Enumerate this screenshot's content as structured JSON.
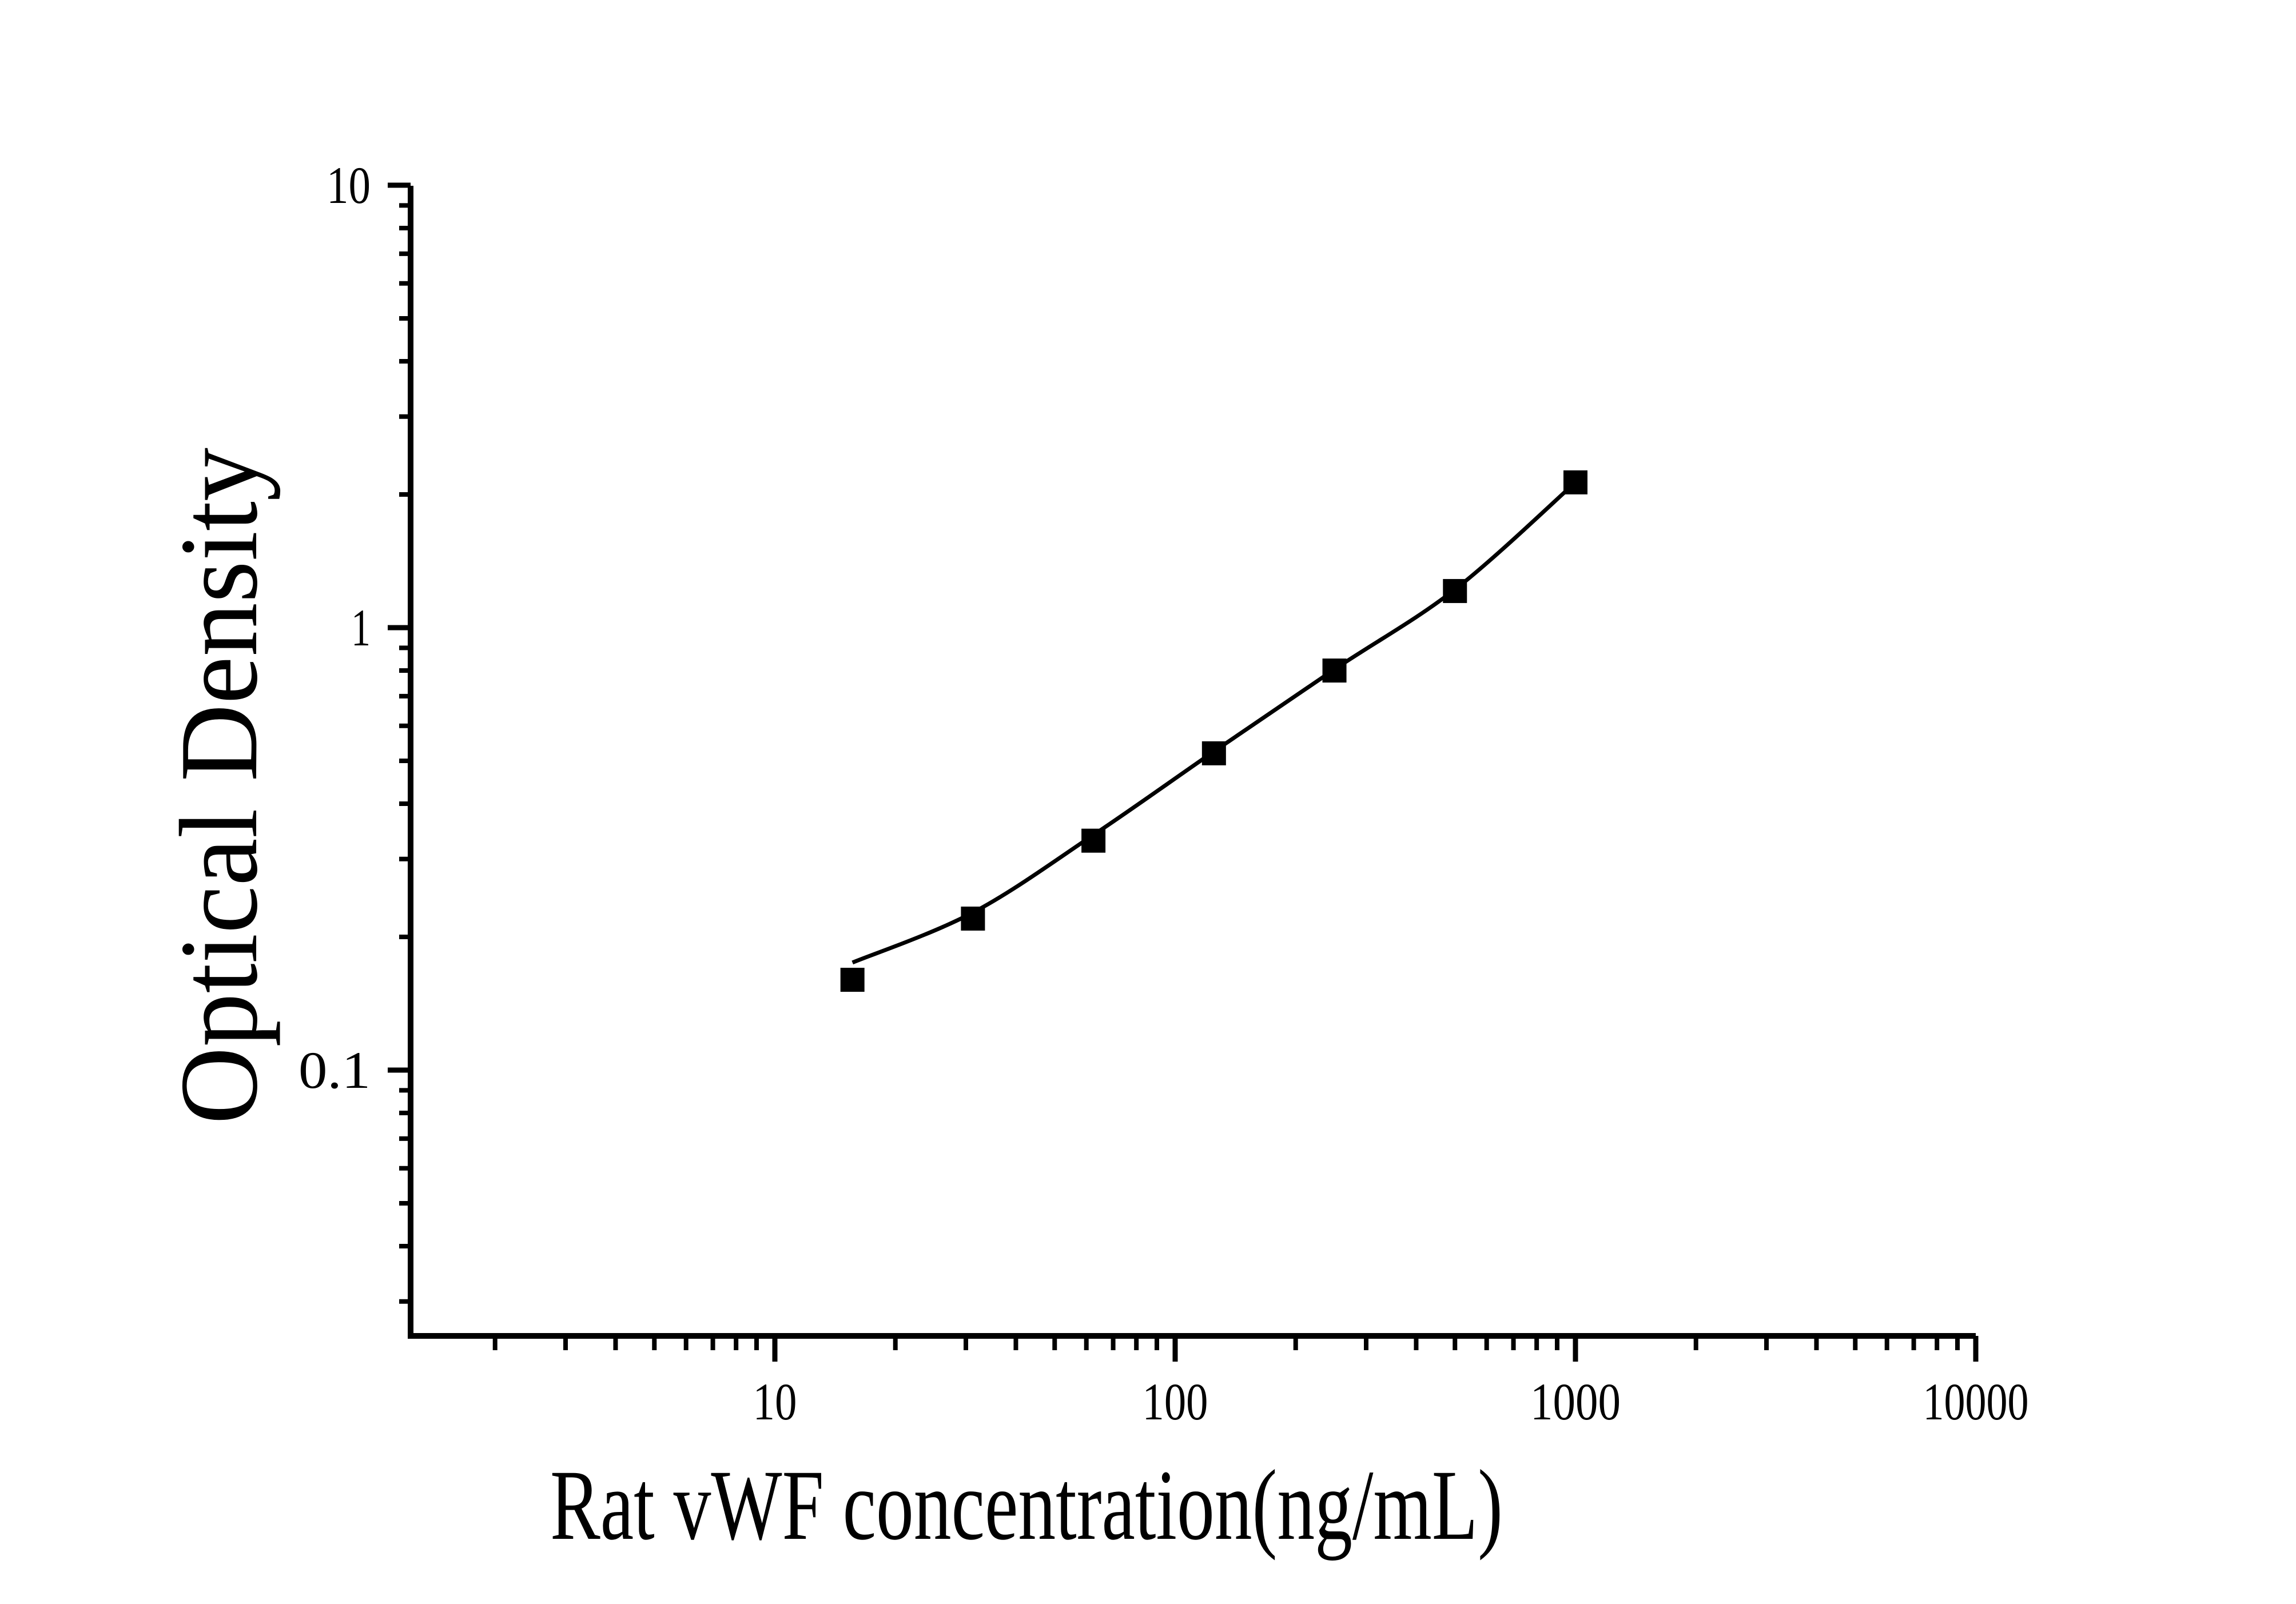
{
  "figure": {
    "background_color": "#ffffff",
    "ink_color": "#000000"
  },
  "chart_data": {
    "type": "scatter",
    "title": "",
    "xlabel": "Rat vWF concentration(ng/mL)",
    "ylabel": "Optical Density",
    "x_scale": "log",
    "y_scale": "log",
    "x_range": [
      1.24,
      10000
    ],
    "y_range": [
      0.025,
      10
    ],
    "grid": "off",
    "legend": "none",
    "marker": "filled-square",
    "marker_color": "#000000",
    "line_color": "#000000",
    "x_ticks": {
      "major": [
        {
          "value": 10,
          "label": "10"
        },
        {
          "value": 100,
          "label": "100"
        },
        {
          "value": 1000,
          "label": "1000"
        },
        {
          "value": 10000,
          "label": "10000"
        }
      ],
      "minor": "log-2-to-9-per-decade"
    },
    "y_ticks": {
      "major": [
        {
          "value": 10,
          "label": "10"
        },
        {
          "value": 1,
          "label": "1"
        },
        {
          "value": 0.1,
          "label": "0.1"
        }
      ],
      "minor": "log-2-to-9-per-decade"
    },
    "series": [
      {
        "name": "standard-curve-points",
        "points": [
          {
            "x": 15.625,
            "y": 0.16
          },
          {
            "x": 31.25,
            "y": 0.22
          },
          {
            "x": 62.5,
            "y": 0.33
          },
          {
            "x": 125,
            "y": 0.52
          },
          {
            "x": 250,
            "y": 0.8
          },
          {
            "x": 500,
            "y": 1.21
          },
          {
            "x": 1000,
            "y": 2.13
          }
        ]
      }
    ],
    "fit_curve": [
      {
        "x": 15.625,
        "y": 0.175
      },
      {
        "x": 31.25,
        "y": 0.227
      },
      {
        "x": 62.5,
        "y": 0.34
      },
      {
        "x": 125,
        "y": 0.525
      },
      {
        "x": 250,
        "y": 0.805
      },
      {
        "x": 500,
        "y": 1.22
      },
      {
        "x": 1000,
        "y": 2.13
      }
    ]
  }
}
